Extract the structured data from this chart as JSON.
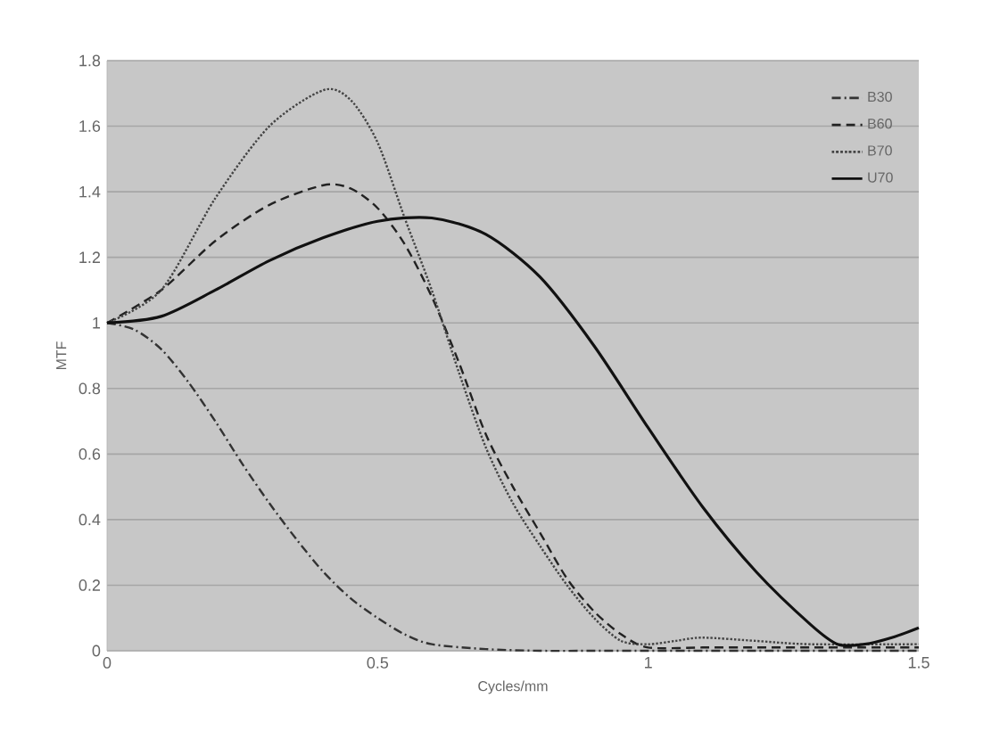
{
  "chart_data": {
    "type": "line",
    "xlabel": "Cycles/mm",
    "ylabel": "MTF",
    "xlim": [
      0,
      1.5
    ],
    "ylim": [
      0,
      1.8
    ],
    "xticks": [
      0,
      0.5,
      1,
      1.5
    ],
    "yticks": [
      0,
      0.2,
      0.4,
      0.6,
      0.8,
      1,
      1.2,
      1.4,
      1.6,
      1.8
    ],
    "grid": "y",
    "legend": "top right",
    "marker": "none",
    "series": [
      {
        "name": "B30",
        "color": "#333333",
        "line_style": "dashdot",
        "x": [
          0,
          0.05,
          0.1,
          0.15,
          0.2,
          0.25,
          0.3,
          0.35,
          0.4,
          0.45,
          0.5,
          0.55,
          0.6,
          0.7,
          0.8,
          0.9,
          1.0,
          1.1,
          1.2,
          1.3,
          1.4,
          1.5
        ],
        "values": [
          1,
          0.98,
          0.92,
          0.82,
          0.7,
          0.57,
          0.45,
          0.34,
          0.24,
          0.16,
          0.1,
          0.05,
          0.02,
          0.005,
          0,
          0,
          0,
          0,
          0,
          0,
          0,
          0
        ]
      },
      {
        "name": "B60",
        "color": "#222222",
        "line_style": "dashed",
        "x": [
          0,
          0.1,
          0.2,
          0.3,
          0.4,
          0.45,
          0.5,
          0.55,
          0.6,
          0.65,
          0.7,
          0.75,
          0.8,
          0.85,
          0.9,
          0.95,
          1.0,
          1.1,
          1.2,
          1.3,
          1.4,
          1.5
        ],
        "values": [
          1,
          1.1,
          1.25,
          1.36,
          1.42,
          1.41,
          1.35,
          1.24,
          1.08,
          0.88,
          0.66,
          0.5,
          0.36,
          0.22,
          0.12,
          0.05,
          0.01,
          0.01,
          0.01,
          0.01,
          0.01,
          0.01
        ]
      },
      {
        "name": "B70",
        "color": "#444444",
        "line_style": "dotted",
        "x": [
          0,
          0.1,
          0.2,
          0.3,
          0.4,
          0.45,
          0.5,
          0.55,
          0.6,
          0.65,
          0.7,
          0.75,
          0.8,
          0.85,
          0.9,
          0.95,
          1.0,
          1.05,
          1.1,
          1.2,
          1.3,
          1.5
        ],
        "values": [
          1,
          1.1,
          1.38,
          1.6,
          1.71,
          1.68,
          1.55,
          1.32,
          1.1,
          0.85,
          0.62,
          0.45,
          0.32,
          0.2,
          0.1,
          0.03,
          0.02,
          0.03,
          0.04,
          0.03,
          0.02,
          0.02
        ]
      },
      {
        "name": "U70",
        "color": "#111111",
        "line_style": "solid",
        "x": [
          0,
          0.1,
          0.2,
          0.3,
          0.4,
          0.5,
          0.6,
          0.7,
          0.8,
          0.9,
          1.0,
          1.1,
          1.2,
          1.3,
          1.35,
          1.4,
          1.45,
          1.5
        ],
        "values": [
          1,
          1.02,
          1.1,
          1.19,
          1.26,
          1.31,
          1.32,
          1.27,
          1.14,
          0.93,
          0.68,
          0.44,
          0.24,
          0.08,
          0.02,
          0.02,
          0.04,
          0.07
        ]
      }
    ]
  }
}
